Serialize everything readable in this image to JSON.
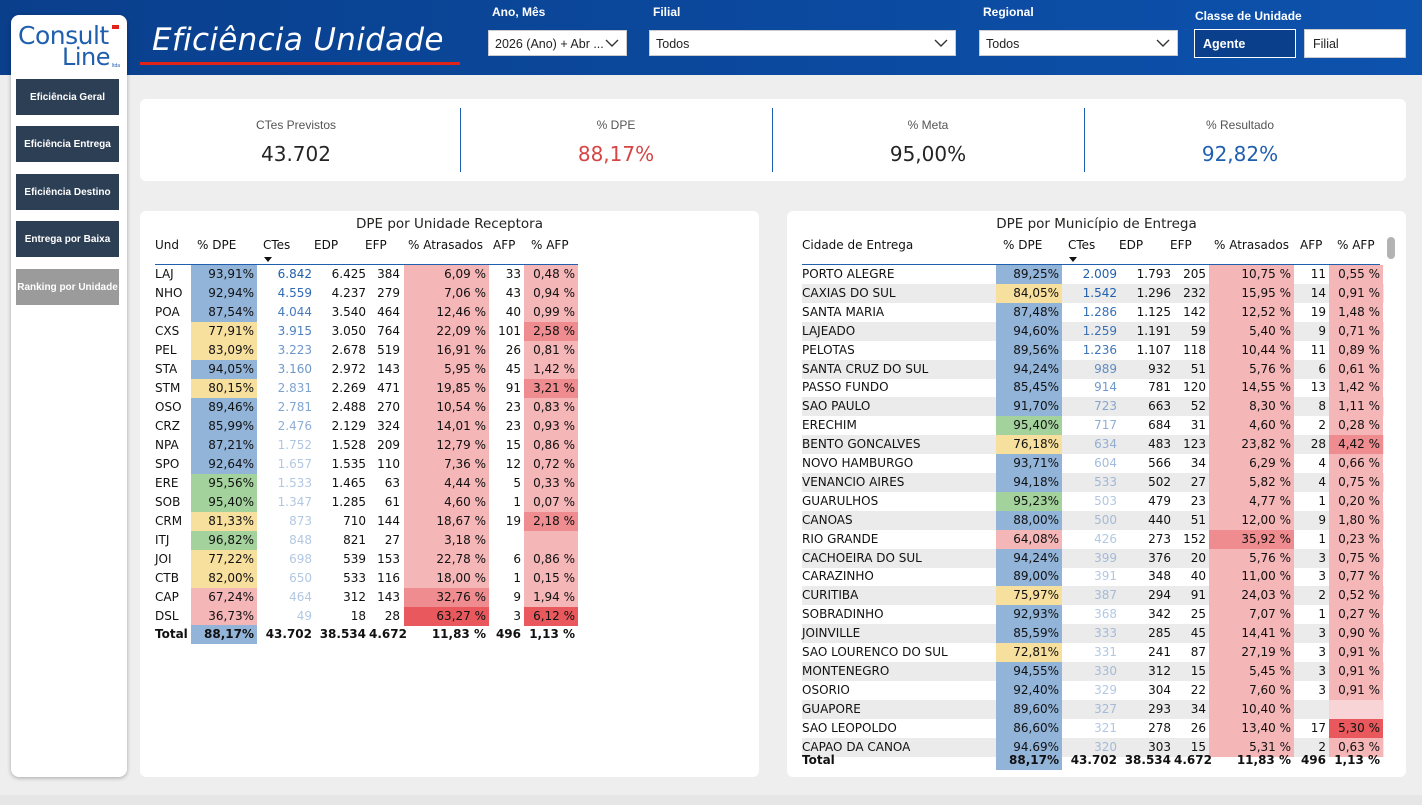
{
  "header": {
    "title": "Eficiência Unidade",
    "filters": {
      "ano_mes": {
        "label": "Ano, Mês",
        "value": "2026 (Ano) + Abr ..."
      },
      "filial": {
        "label": "Filial",
        "value": "Todos"
      },
      "regional": {
        "label": "Regional",
        "value": "Todos"
      },
      "classe": {
        "label": "Classe de Unidade",
        "options": [
          "Agente",
          "Filial"
        ],
        "selected": "Agente"
      }
    }
  },
  "logo": {
    "line1": "Consult",
    "line2": "Line",
    "suffix": "ltda"
  },
  "sidebar": {
    "items": [
      {
        "label": "Eficiência Geral"
      },
      {
        "label": "Eficiência Entrega"
      },
      {
        "label": "Eficiência Destino"
      },
      {
        "label": "Entrega por Baixa"
      },
      {
        "label": "Ranking por Unidade"
      }
    ]
  },
  "kpis": [
    {
      "label": "CTes Previstos",
      "value": "43.702",
      "color": "#252423"
    },
    {
      "label": "% DPE",
      "value": "88,17%",
      "color": "#d64545"
    },
    {
      "label": "% Meta",
      "value": "95,00%",
      "color": "#252423"
    },
    {
      "label": "% Resultado",
      "value": "92,82%",
      "color": "#1f5fae"
    }
  ],
  "colors": {
    "blue": "#93b4d9",
    "yellow": "#f7df9d",
    "green": "#a4d29c",
    "lightred": "#f5b6b8",
    "pink": "#f8d4d6",
    "red": "#ee8c8f",
    "darkred": "#e8585c",
    "ctesblue": "#1f5fae"
  },
  "table1": {
    "title": "DPE por Unidade Receptora",
    "headers": [
      "Und",
      "% DPE",
      "CTes",
      "EDP",
      "EFP",
      "% Atrasados",
      "AFP",
      "% AFP"
    ],
    "rows": [
      [
        "LAJ",
        "93,91%",
        "6.842",
        "6.425",
        "384",
        "6,09 %",
        "33",
        "0,48 %"
      ],
      [
        "NHO",
        "92,94%",
        "4.559",
        "4.237",
        "279",
        "7,06 %",
        "43",
        "0,94 %"
      ],
      [
        "POA",
        "87,54%",
        "4.044",
        "3.540",
        "464",
        "12,46 %",
        "40",
        "0,99 %"
      ],
      [
        "CXS",
        "77,91%",
        "3.915",
        "3.050",
        "764",
        "22,09 %",
        "101",
        "2,58 %"
      ],
      [
        "PEL",
        "83,09%",
        "3.223",
        "2.678",
        "519",
        "16,91 %",
        "26",
        "0,81 %"
      ],
      [
        "STA",
        "94,05%",
        "3.160",
        "2.972",
        "143",
        "5,95 %",
        "45",
        "1,42 %"
      ],
      [
        "STM",
        "80,15%",
        "2.831",
        "2.269",
        "471",
        "19,85 %",
        "91",
        "3,21 %"
      ],
      [
        "OSO",
        "89,46%",
        "2.781",
        "2.488",
        "270",
        "10,54 %",
        "23",
        "0,83 %"
      ],
      [
        "CRZ",
        "85,99%",
        "2.476",
        "2.129",
        "324",
        "14,01 %",
        "23",
        "0,93 %"
      ],
      [
        "NPA",
        "87,21%",
        "1.752",
        "1.528",
        "209",
        "12,79 %",
        "15",
        "0,86 %"
      ],
      [
        "SPO",
        "92,64%",
        "1.657",
        "1.535",
        "110",
        "7,36 %",
        "12",
        "0,72 %"
      ],
      [
        "ERE",
        "95,56%",
        "1.533",
        "1.465",
        "63",
        "4,44 %",
        "5",
        "0,33 %"
      ],
      [
        "SOB",
        "95,40%",
        "1.347",
        "1.285",
        "61",
        "4,60 %",
        "1",
        "0,07 %"
      ],
      [
        "CRM",
        "81,33%",
        "873",
        "710",
        "144",
        "18,67 %",
        "19",
        "2,18 %"
      ],
      [
        "ITJ",
        "96,82%",
        "848",
        "821",
        "27",
        "3,18 %",
        "",
        ""
      ],
      [
        "JOI",
        "77,22%",
        "698",
        "539",
        "153",
        "22,78 %",
        "6",
        "0,86 %"
      ],
      [
        "CTB",
        "82,00%",
        "650",
        "533",
        "116",
        "18,00 %",
        "1",
        "0,15 %"
      ],
      [
        "CAP",
        "67,24%",
        "464",
        "312",
        "143",
        "32,76 %",
        "9",
        "1,94 %"
      ],
      [
        "DSL",
        "36,73%",
        "49",
        "18",
        "28",
        "63,27 %",
        "3",
        "6,12 %"
      ]
    ],
    "total": [
      "Total",
      "88,17%",
      "43.702",
      "38.534",
      "4.672",
      "11,83 %",
      "496",
      "1,13 %"
    ]
  },
  "table2": {
    "title": "DPE por Município de Entrega",
    "headers": [
      "Cidade de Entrega",
      "% DPE",
      "CTes",
      "EDP",
      "EFP",
      "% Atrasados",
      "AFP",
      "% AFP"
    ],
    "rows": [
      [
        "PORTO ALEGRE",
        "89,25%",
        "2.009",
        "1.793",
        "205",
        "10,75 %",
        "11",
        "0,55 %"
      ],
      [
        "CAXIAS DO SUL",
        "84,05%",
        "1.542",
        "1.296",
        "232",
        "15,95 %",
        "14",
        "0,91 %"
      ],
      [
        "SANTA MARIA",
        "87,48%",
        "1.286",
        "1.125",
        "142",
        "12,52 %",
        "19",
        "1,48 %"
      ],
      [
        "LAJEADO",
        "94,60%",
        "1.259",
        "1.191",
        "59",
        "5,40 %",
        "9",
        "0,71 %"
      ],
      [
        "PELOTAS",
        "89,56%",
        "1.236",
        "1.107",
        "118",
        "10,44 %",
        "11",
        "0,89 %"
      ],
      [
        "SANTA CRUZ DO SUL",
        "94,24%",
        "989",
        "932",
        "51",
        "5,76 %",
        "6",
        "0,61 %"
      ],
      [
        "PASSO FUNDO",
        "85,45%",
        "914",
        "781",
        "120",
        "14,55 %",
        "13",
        "1,42 %"
      ],
      [
        "SAO PAULO",
        "91,70%",
        "723",
        "663",
        "52",
        "8,30 %",
        "8",
        "1,11 %"
      ],
      [
        "ERECHIM",
        "95,40%",
        "717",
        "684",
        "31",
        "4,60 %",
        "2",
        "0,28 %"
      ],
      [
        "BENTO GONCALVES",
        "76,18%",
        "634",
        "483",
        "123",
        "23,82 %",
        "28",
        "4,42 %"
      ],
      [
        "NOVO HAMBURGO",
        "93,71%",
        "604",
        "566",
        "34",
        "6,29 %",
        "4",
        "0,66 %"
      ],
      [
        "VENANCIO AIRES",
        "94,18%",
        "533",
        "502",
        "27",
        "5,82 %",
        "4",
        "0,75 %"
      ],
      [
        "GUARULHOS",
        "95,23%",
        "503",
        "479",
        "23",
        "4,77 %",
        "1",
        "0,20 %"
      ],
      [
        "CANOAS",
        "88,00%",
        "500",
        "440",
        "51",
        "12,00 %",
        "9",
        "1,80 %"
      ],
      [
        "RIO GRANDE",
        "64,08%",
        "426",
        "273",
        "152",
        "35,92 %",
        "1",
        "0,23 %"
      ],
      [
        "CACHOEIRA DO SUL",
        "94,24%",
        "399",
        "376",
        "20",
        "5,76 %",
        "3",
        "0,75 %"
      ],
      [
        "CARAZINHO",
        "89,00%",
        "391",
        "348",
        "40",
        "11,00 %",
        "3",
        "0,77 %"
      ],
      [
        "CURITIBA",
        "75,97%",
        "387",
        "294",
        "91",
        "24,03 %",
        "2",
        "0,52 %"
      ],
      [
        "SOBRADINHO",
        "92,93%",
        "368",
        "342",
        "25",
        "7,07 %",
        "1",
        "0,27 %"
      ],
      [
        "JOINVILLE",
        "85,59%",
        "333",
        "285",
        "45",
        "14,41 %",
        "3",
        "0,90 %"
      ],
      [
        "SAO LOURENCO DO SUL",
        "72,81%",
        "331",
        "241",
        "87",
        "27,19 %",
        "3",
        "0,91 %"
      ],
      [
        "MONTENEGRO",
        "94,55%",
        "330",
        "312",
        "15",
        "5,45 %",
        "3",
        "0,91 %"
      ],
      [
        "OSORIO",
        "92,40%",
        "329",
        "304",
        "22",
        "7,60 %",
        "3",
        "0,91 %"
      ],
      [
        "GUAPORE",
        "89,60%",
        "327",
        "293",
        "34",
        "10,40 %",
        "",
        ""
      ],
      [
        "SAO LEOPOLDO",
        "86,60%",
        "321",
        "278",
        "26",
        "13,40 %",
        "17",
        "5,30 %"
      ],
      [
        "CAPAO DA CANOA",
        "94,69%",
        "320",
        "303",
        "15",
        "5,31 %",
        "2",
        "0,63 %"
      ]
    ],
    "total": [
      "Total",
      "88,17%",
      "43.702",
      "38.534",
      "4.672",
      "11,83 %",
      "496",
      "1,13 %"
    ]
  }
}
